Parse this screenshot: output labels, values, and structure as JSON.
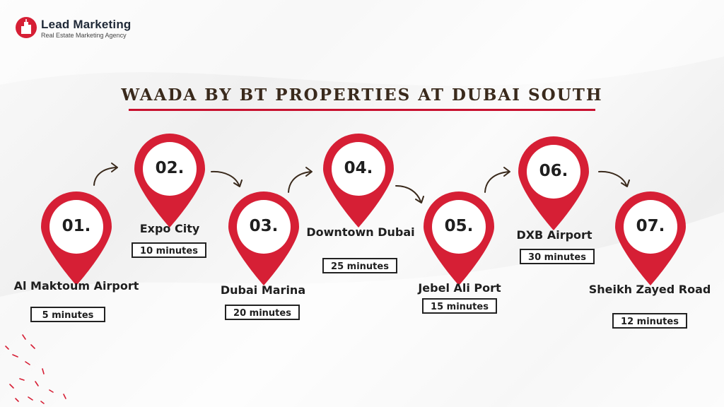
{
  "brand": {
    "name": "Lead Marketing",
    "tagline": "Real Estate Marketing Agency",
    "accent_color": "#d61f35"
  },
  "title": "WAADA BY BT PROPERTIES AT DUBAI SOUTH",
  "stops": [
    {
      "number": "01.",
      "name": "Al Maktoum Airport",
      "time": "5 minutes"
    },
    {
      "number": "02.",
      "name": "Expo City",
      "time": "10 minutes"
    },
    {
      "number": "03.",
      "name": "Dubai Marina",
      "time": "20 minutes"
    },
    {
      "number": "04.",
      "name": "Downtown Dubai",
      "time": "25 minutes"
    },
    {
      "number": "05.",
      "name": "Jebel Ali Port",
      "time": "15 minutes"
    },
    {
      "number": "06.",
      "name": "DXB Airport",
      "time": "30 minutes"
    },
    {
      "number": "07.",
      "name": "Sheikh Zayed Road",
      "time": "12 minutes"
    }
  ],
  "icons": {
    "pin": "map-pin-icon",
    "arrow": "curved-arrow-icon"
  }
}
